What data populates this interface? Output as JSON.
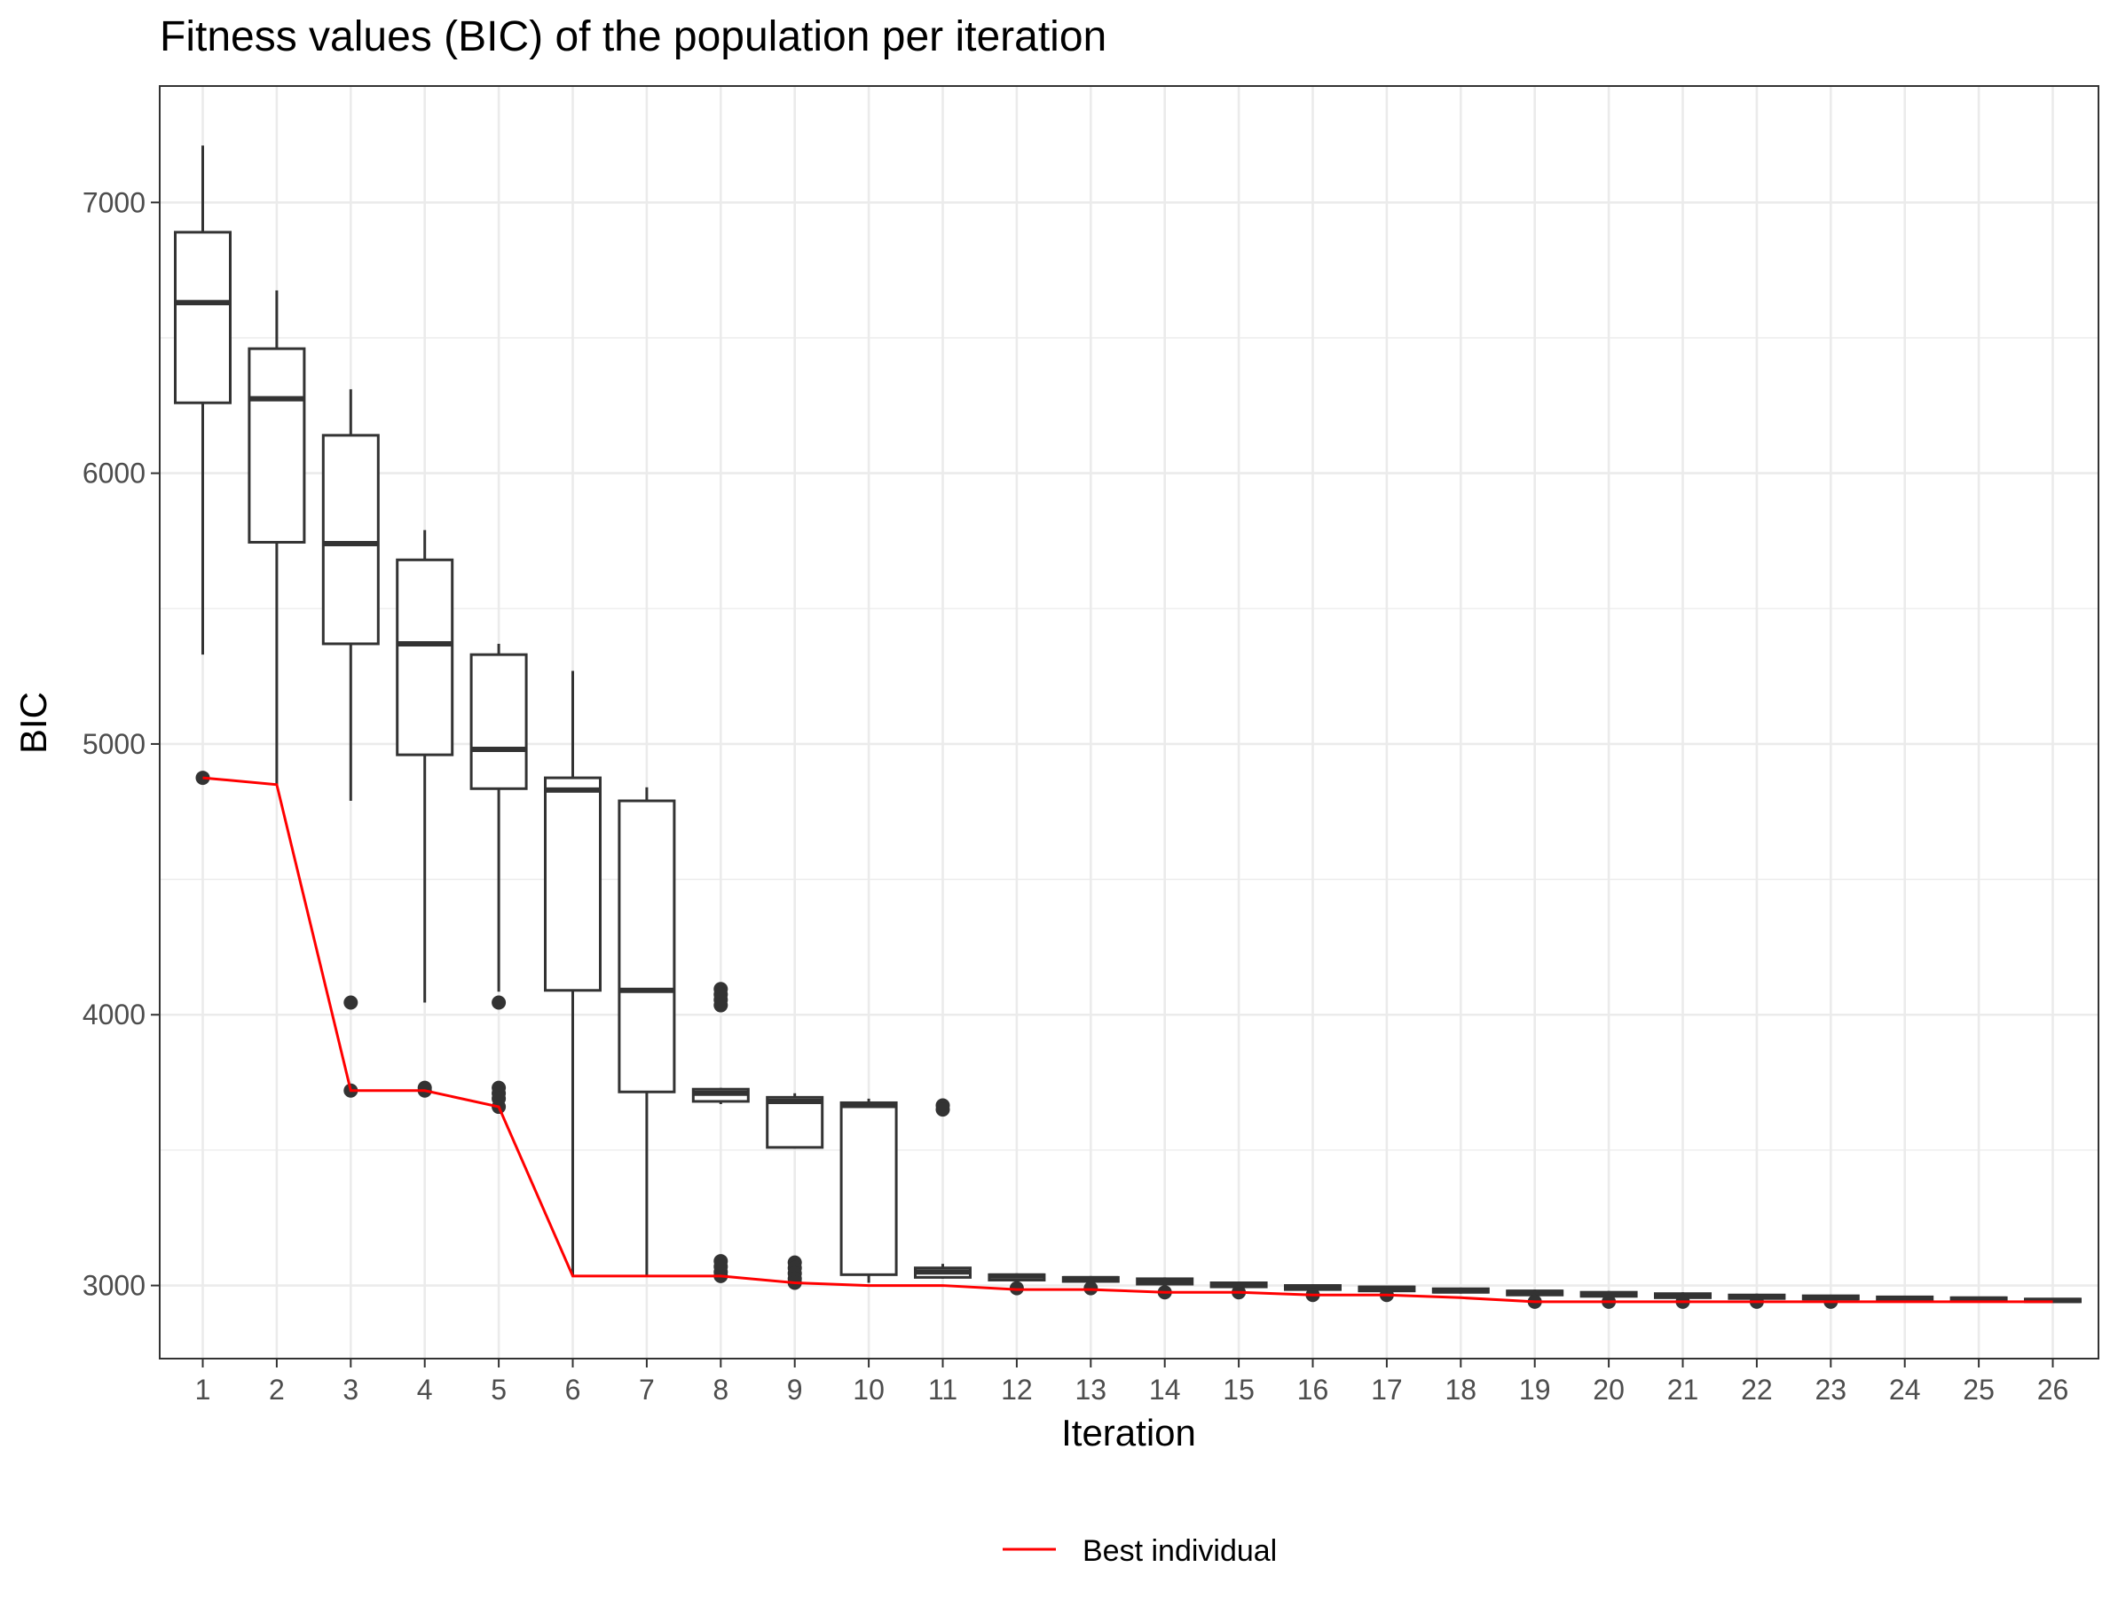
{
  "chart_data": {
    "type": "boxplot",
    "title": "Fitness values (BIC) of the population per iteration",
    "xlabel": "Iteration",
    "ylabel": "BIC",
    "ylim": [
      2730,
      7430
    ],
    "yticks": [
      3000,
      4000,
      5000,
      6000,
      7000
    ],
    "grid": true,
    "legend_position": "bottom",
    "box_color": "#333333",
    "line_color": "#ff0000",
    "grid_color": "#ebebeb",
    "categories": [
      "1",
      "2",
      "3",
      "4",
      "5",
      "6",
      "7",
      "8",
      "9",
      "10",
      "11",
      "12",
      "13",
      "14",
      "15",
      "16",
      "17",
      "18",
      "19",
      "20",
      "21",
      "22",
      "23",
      "24",
      "25",
      "26"
    ],
    "boxes": [
      {
        "lower": 5330,
        "q1": 6260,
        "median": 6630,
        "q3": 6890,
        "upper": 7210,
        "outliers": [
          4875
        ]
      },
      {
        "lower": 4850,
        "q1": 5745,
        "median": 6275,
        "q3": 6460,
        "upper": 6675,
        "outliers": []
      },
      {
        "lower": 4790,
        "q1": 5370,
        "median": 5740,
        "q3": 6140,
        "upper": 6310,
        "outliers": [
          4045,
          3720
        ]
      },
      {
        "lower": 4045,
        "q1": 4960,
        "median": 5370,
        "q3": 5680,
        "upper": 5790,
        "outliers": [
          3720,
          3730
        ]
      },
      {
        "lower": 4085,
        "q1": 4835,
        "median": 4980,
        "q3": 5330,
        "upper": 5370,
        "outliers": [
          4045,
          3730,
          3710,
          3690,
          3660
        ]
      },
      {
        "lower": 3035,
        "q1": 4090,
        "median": 4830,
        "q3": 4875,
        "upper": 5270,
        "outliers": []
      },
      {
        "lower": 3035,
        "q1": 3715,
        "median": 4090,
        "q3": 4790,
        "upper": 4840,
        "outliers": []
      },
      {
        "lower": 3670,
        "q1": 3680,
        "median": 3710,
        "q3": 3725,
        "upper": 3730,
        "outliers": [
          4095,
          4075,
          4055,
          4035,
          3090,
          3070,
          3050,
          3035
        ]
      },
      {
        "lower": 3510,
        "q1": 3510,
        "median": 3680,
        "q3": 3695,
        "upper": 3710,
        "outliers": [
          3085,
          3065,
          3045,
          3025,
          3010
        ]
      },
      {
        "lower": 3010,
        "q1": 3040,
        "median": 3665,
        "q3": 3675,
        "upper": 3690,
        "outliers": []
      },
      {
        "lower": 3025,
        "q1": 3030,
        "median": 3050,
        "q3": 3065,
        "upper": 3080,
        "outliers": [
          3665,
          3650
        ]
      },
      {
        "lower": 3005,
        "q1": 3020,
        "median": 3035,
        "q3": 3040,
        "upper": 3045,
        "outliers": [
          2990
        ]
      },
      {
        "lower": 3005,
        "q1": 3015,
        "median": 3025,
        "q3": 3030,
        "upper": 3035,
        "outliers": [
          2990
        ]
      },
      {
        "lower": 2995,
        "q1": 3005,
        "median": 3015,
        "q3": 3025,
        "upper": 3030,
        "outliers": [
          2975
        ]
      },
      {
        "lower": 2990,
        "q1": 2995,
        "median": 3005,
        "q3": 3010,
        "upper": 3015,
        "outliers": [
          2975
        ]
      },
      {
        "lower": 2980,
        "q1": 2985,
        "median": 2995,
        "q3": 3000,
        "upper": 3005,
        "outliers": [
          2965
        ]
      },
      {
        "lower": 2975,
        "q1": 2980,
        "median": 2990,
        "q3": 2995,
        "upper": 2998,
        "outliers": [
          2965
        ]
      },
      {
        "lower": 2970,
        "q1": 2975,
        "median": 2980,
        "q3": 2988,
        "upper": 2990,
        "outliers": []
      },
      {
        "lower": 2960,
        "q1": 2965,
        "median": 2975,
        "q3": 2980,
        "upper": 2985,
        "outliers": [
          2940
        ]
      },
      {
        "lower": 2955,
        "q1": 2960,
        "median": 2968,
        "q3": 2975,
        "upper": 2980,
        "outliers": [
          2940
        ]
      },
      {
        "lower": 2950,
        "q1": 2955,
        "median": 2962,
        "q3": 2970,
        "upper": 2975,
        "outliers": [
          2940
        ]
      },
      {
        "lower": 2948,
        "q1": 2952,
        "median": 2958,
        "q3": 2965,
        "upper": 2970,
        "outliers": [
          2940
        ]
      },
      {
        "lower": 2945,
        "q1": 2950,
        "median": 2955,
        "q3": 2962,
        "upper": 2965,
        "outliers": [
          2940
        ]
      },
      {
        "lower": 2945,
        "q1": 2948,
        "median": 2952,
        "q3": 2958,
        "upper": 2962,
        "outliers": []
      },
      {
        "lower": 2942,
        "q1": 2945,
        "median": 2950,
        "q3": 2955,
        "upper": 2958,
        "outliers": []
      },
      {
        "lower": 2938,
        "q1": 2940,
        "median": 2945,
        "q3": 2950,
        "upper": 2952,
        "outliers": []
      }
    ],
    "series": [
      {
        "name": "Best individual",
        "values": [
          4875,
          4850,
          3720,
          3720,
          3660,
          3035,
          3035,
          3035,
          3010,
          3000,
          3000,
          2985,
          2985,
          2975,
          2975,
          2965,
          2965,
          2955,
          2940,
          2940,
          2940,
          2940,
          2940,
          2940,
          2940,
          2940
        ]
      }
    ]
  }
}
